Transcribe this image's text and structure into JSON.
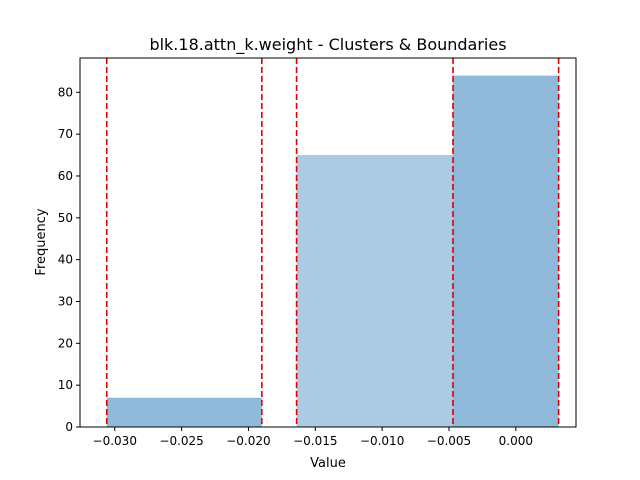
{
  "chart_data": {
    "type": "bar",
    "title": "blk.18.attn_k.weight - Clusters & Boundaries",
    "xlabel": "Value",
    "ylabel": "Frequency",
    "xlim": [
      -0.0326,
      0.0045
    ],
    "ylim": [
      0,
      88.2
    ],
    "grid": false,
    "xticks": [
      -0.03,
      -0.025,
      -0.02,
      -0.015,
      -0.01,
      -0.005,
      0.0
    ],
    "xtick_labels": [
      "−0.030",
      "−0.025",
      "−0.020",
      "−0.015",
      "−0.010",
      "−0.005",
      "0.000"
    ],
    "yticks": [
      0,
      10,
      20,
      30,
      40,
      50,
      60,
      70,
      80
    ],
    "bins": [
      {
        "x0": -0.0306,
        "x1": -0.019,
        "count": 7,
        "color": "#8fbad9"
      },
      {
        "x0": -0.0164,
        "x1": -0.0047,
        "count": 65,
        "color": "#abcbe5"
      },
      {
        "x0": -0.0047,
        "x1": 0.0032,
        "count": 84,
        "color": "#8fbad9"
      }
    ],
    "boundaries": [
      -0.0306,
      -0.019,
      -0.0164,
      -0.0047,
      0.0032
    ],
    "boundary_color": "#e00000"
  }
}
